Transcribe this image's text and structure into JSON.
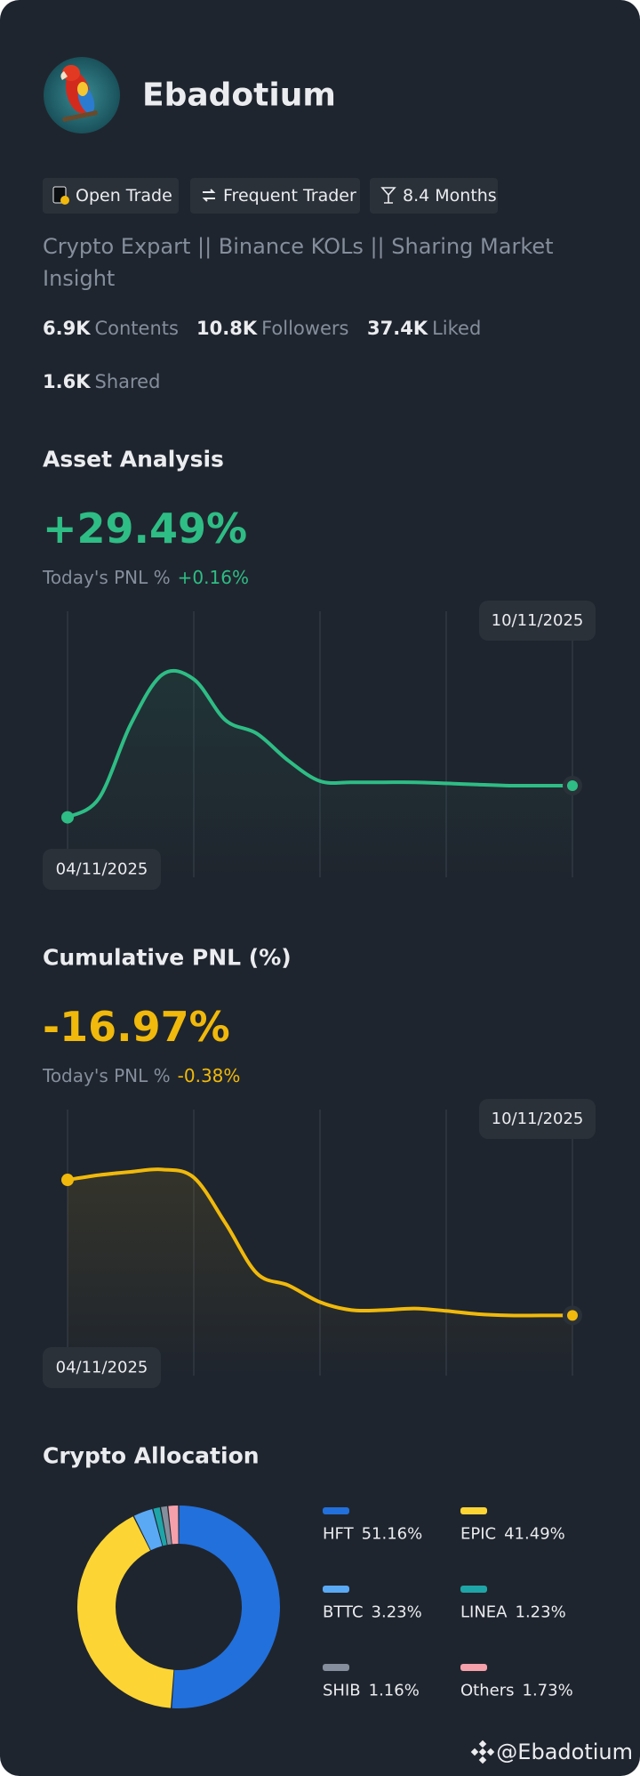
{
  "profile": {
    "name": "Ebadotium",
    "tags": [
      "Open Trade",
      "Frequent Trader",
      "8.4 Months"
    ],
    "bio": "Crypto Expart || Binance KOLs || Sharing Market Insight",
    "stats": [
      {
        "value": "6.9K",
        "label": "Contents"
      },
      {
        "value": "10.8K",
        "label": "Followers"
      },
      {
        "value": "37.4K",
        "label": "Liked"
      },
      {
        "value": "1.6K",
        "label": "Shared"
      }
    ]
  },
  "chart_data": [
    {
      "type": "line",
      "title": "Asset Analysis",
      "headline": "+29.49%",
      "today_label": "Today's PNL %",
      "today_value": "+0.16%",
      "start_label": "04/11/2025",
      "end_label": "10/11/2025",
      "color": "#2ebd85",
      "values": [
        0,
        17.9,
        86.4,
        132.7,
        128.5,
        90.5,
        77.9,
        52.7,
        33.7,
        32.6,
        32.6,
        32.6,
        31.6,
        30.5,
        29.5,
        29.5,
        29.49
      ],
      "ylim": [
        -55.8,
        191.7
      ]
    },
    {
      "type": "line",
      "title": "Cumulative PNL (%)",
      "headline": "-16.97%",
      "today_label": "Today's PNL %",
      "today_value": "-0.38%",
      "start_label": "04/11/2025",
      "end_label": "10/11/2025",
      "color": "#f0b90b",
      "values": [
        0,
        0.6,
        1.0,
        1.3,
        0.3,
        -5.4,
        -11.7,
        -13.2,
        -15.3,
        -16.3,
        -16.3,
        -16.1,
        -16.4,
        -16.8,
        -16.97,
        -16.97,
        -16.97
      ],
      "ylim": [
        -24.5,
        8.8
      ]
    },
    {
      "type": "pie",
      "title": "Crypto Allocation",
      "donut": true,
      "categories": [
        "HFT",
        "EPIC",
        "BTTC",
        "LINEA",
        "SHIB",
        "Others"
      ],
      "values": [
        51.16,
        41.49,
        3.23,
        1.23,
        1.16,
        1.73
      ],
      "value_labels": [
        "51.16%",
        "41.49%",
        "3.23%",
        "1.23%",
        "1.16%",
        "1.73%"
      ],
      "colors": [
        "#2270db",
        "#fcd535",
        "#5aa9f5",
        "#1ea5a8",
        "#848e9c",
        "#f5a0ab"
      ]
    }
  ],
  "watermark": "@Ebadotium"
}
